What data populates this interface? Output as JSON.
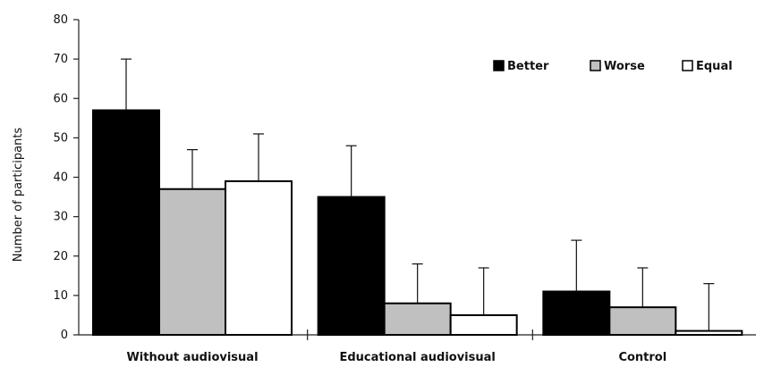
{
  "chart_data": {
    "type": "bar",
    "ylabel": "Number of participants",
    "xlabel": "",
    "ylim": [
      0,
      80
    ],
    "yticks": [
      0,
      10,
      20,
      30,
      40,
      50,
      60,
      70,
      80
    ],
    "categories": [
      "Without audiovisual",
      "Educational audiovisual",
      "Control"
    ],
    "series": [
      {
        "name": "Better",
        "values": [
          57,
          35,
          11
        ],
        "errors": [
          13,
          13,
          13
        ],
        "color": "#000000"
      },
      {
        "name": "Worse",
        "values": [
          37,
          8,
          7
        ],
        "errors": [
          10,
          10,
          10
        ],
        "color": "#c0c0c0"
      },
      {
        "name": "Equal",
        "values": [
          39,
          5,
          1
        ],
        "errors": [
          12,
          12,
          12
        ],
        "color": "#ffffff"
      }
    ],
    "legend_position": "top-right",
    "error_bars": "upper"
  }
}
